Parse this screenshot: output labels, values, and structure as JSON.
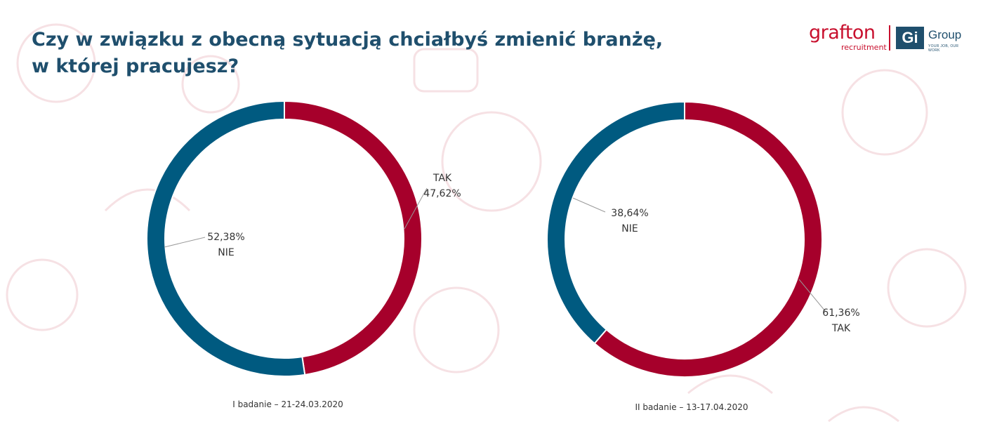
{
  "title": {
    "line1": "Czy w związku z obecną sytuacją chciałbyś zmienić branżę,",
    "line2": "w której pracujesz?"
  },
  "logo": {
    "brand": "grafton",
    "sub": "recruitment",
    "mark": "Gi",
    "group": "Group",
    "tagline": "YOUR JOB, OUR WORK"
  },
  "colors": {
    "tak": "#a6002b",
    "nie": "#005a80",
    "title": "#1f4f6d"
  },
  "chart_data": [
    {
      "type": "pie",
      "subtype": "donut",
      "caption": "I badanie – 21-24.03.2020",
      "slices": [
        {
          "category": "TAK",
          "value": 47.62,
          "label": "47,62%",
          "color": "#a6002b"
        },
        {
          "category": "NIE",
          "value": 52.38,
          "label": "52,38%",
          "color": "#005a80"
        }
      ]
    },
    {
      "type": "pie",
      "subtype": "donut",
      "caption": "II badanie – 13-17.04.2020",
      "slices": [
        {
          "category": "TAK",
          "value": 61.36,
          "label": "61,36%",
          "color": "#a6002b"
        },
        {
          "category": "NIE",
          "value": 38.64,
          "label": "38,64%",
          "color": "#005a80"
        }
      ]
    }
  ]
}
